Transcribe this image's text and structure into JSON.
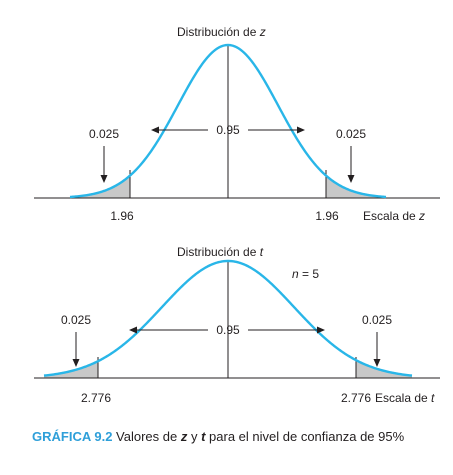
{
  "colors": {
    "curve": "#29b6e8",
    "tail_fill": "#c8c8c8",
    "ink": "#231f20",
    "caption_label": "#2e9fd9"
  },
  "top_panel": {
    "title_text": "Distribución de ",
    "title_var": "z",
    "center_label": "0.95",
    "left_tail_label": "0.025",
    "right_tail_label": "0.025",
    "left_crit": "1.96",
    "right_crit": "1.96",
    "scale_text": "Escala de ",
    "scale_var": "z"
  },
  "bottom_panel": {
    "title_text": "Distribución de ",
    "title_var": "t",
    "n_var": "n",
    "n_rest": " = 5",
    "center_label": "0.95",
    "left_tail_label": "0.025",
    "right_tail_label": "0.025",
    "left_crit": "2.776",
    "right_crit": "2.776",
    "scale_text": "Escala de ",
    "scale_var": "t"
  },
  "caption": {
    "label": "GRÁFICA 9.2",
    "text1": " Valores de ",
    "var1": "z",
    "text2": " y ",
    "var2": "t",
    "text3": " para el nivel de confianza de 95%"
  }
}
